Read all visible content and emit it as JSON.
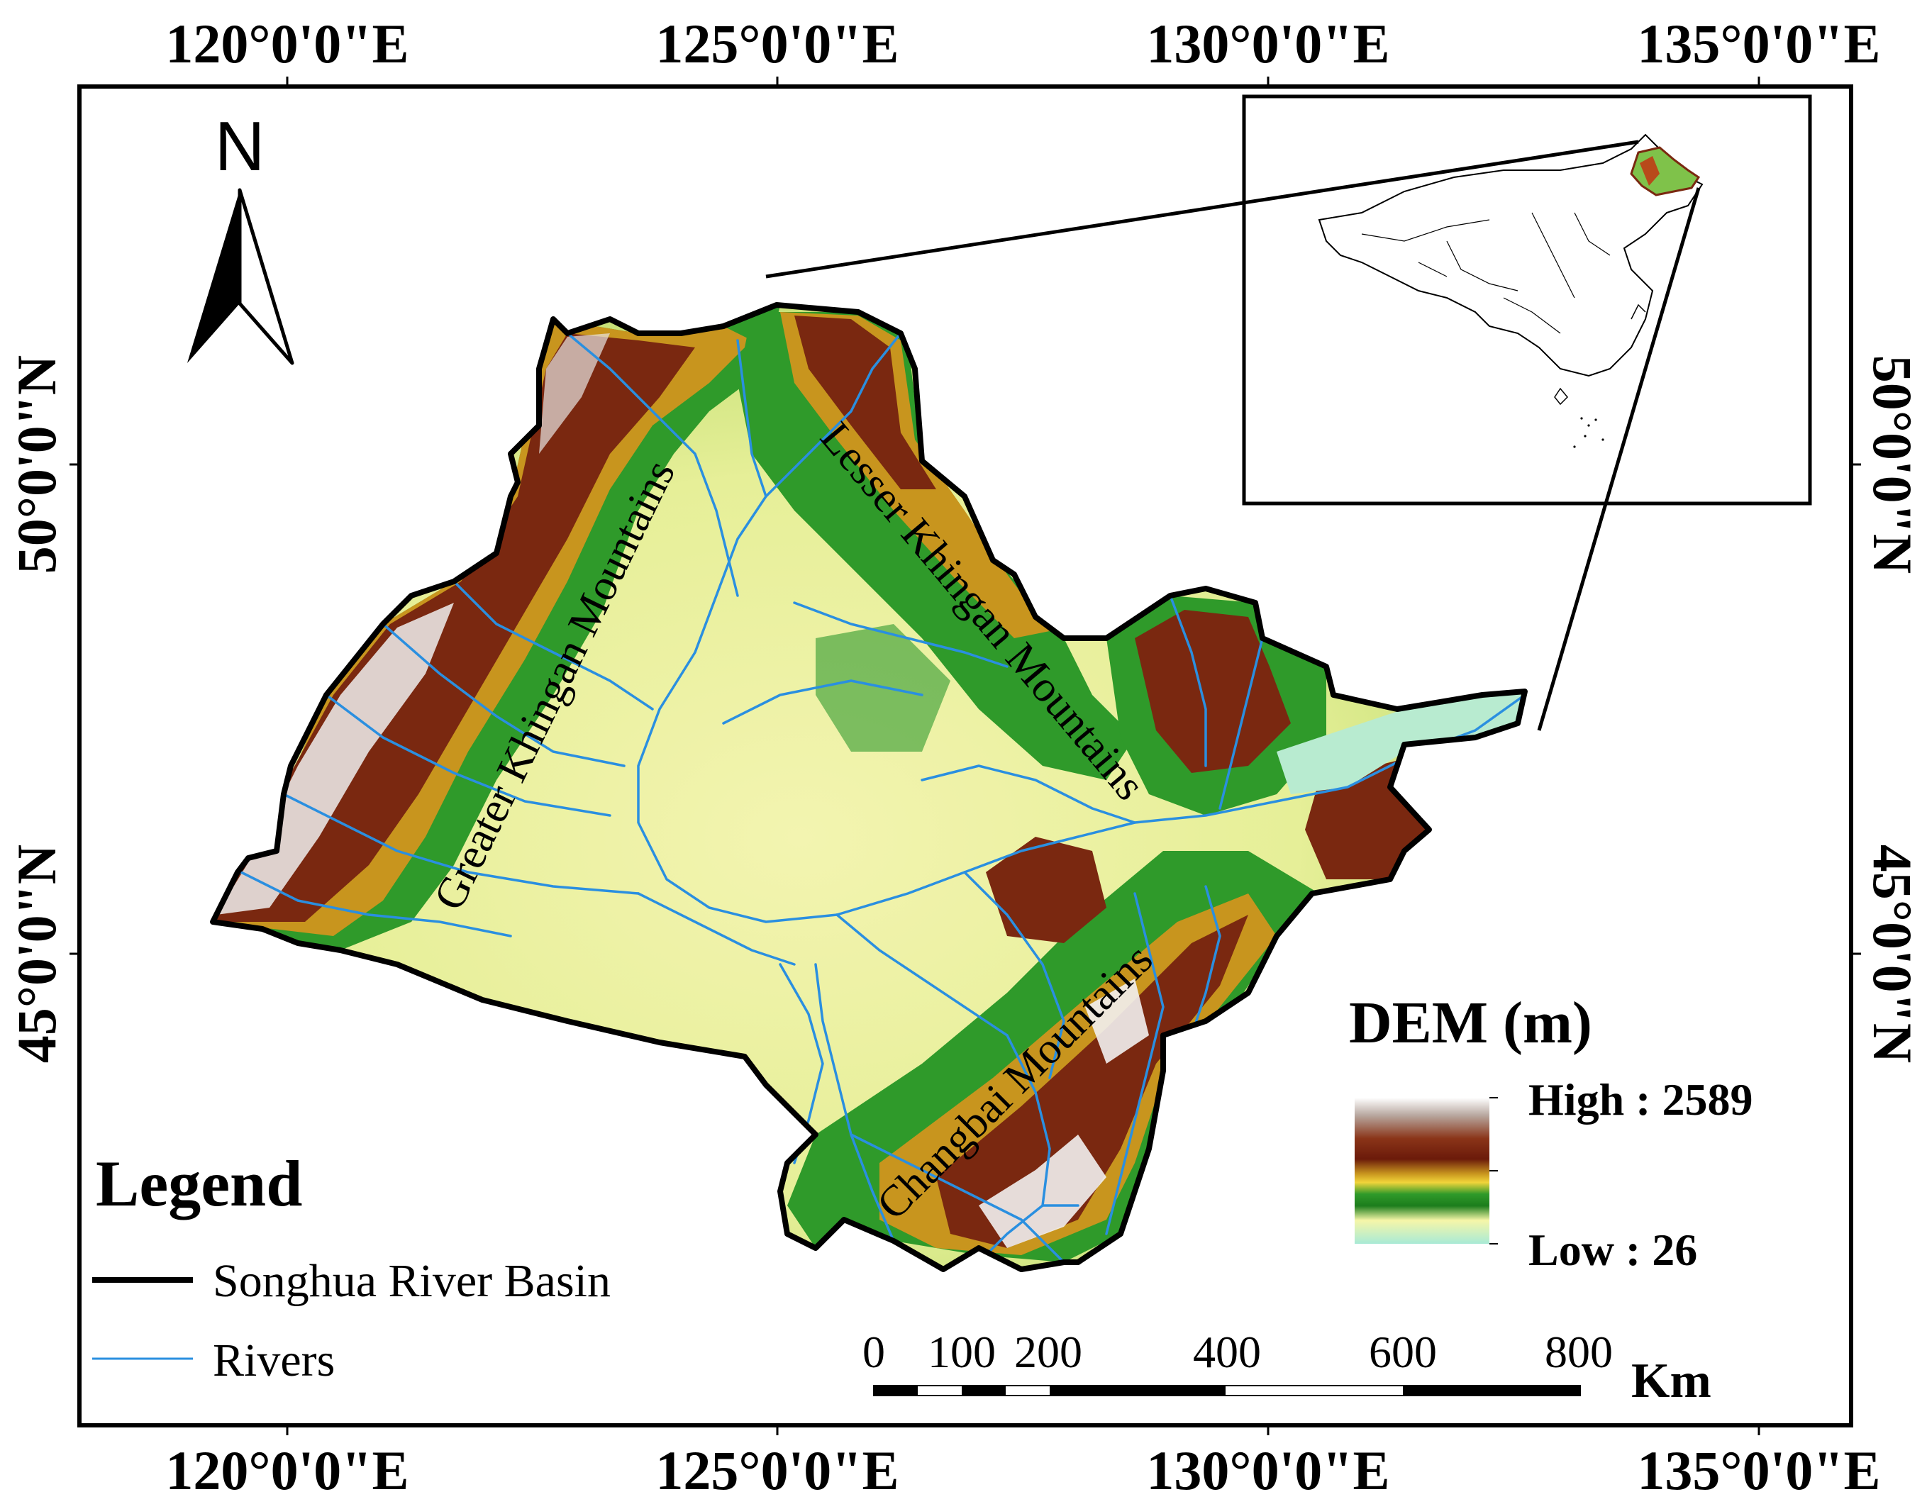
{
  "graticule": {
    "lon_labels": [
      "120°0'0\"E",
      "125°0'0\"E",
      "130°0'0\"E",
      "135°0'0\"E"
    ],
    "lat_labels": [
      "50°0'0\"N",
      "45°0'0\"N"
    ]
  },
  "north_arrow": {
    "label": "N",
    "icon": "north-arrow-icon"
  },
  "mountains": {
    "greater": "Greater Khingan Mountains",
    "lesser": "Lesser Khingan Mountains",
    "changbai": "Changbai Mountains"
  },
  "legend": {
    "title": "Legend",
    "items": [
      {
        "label": "Songhua River Basin",
        "color": "#000000"
      },
      {
        "label": "Rivers",
        "color": "#2a8fe0"
      }
    ]
  },
  "dem": {
    "title": "DEM (m)",
    "high": "High : 2589",
    "low": "Low : 26",
    "colors": [
      "#ffffff",
      "#6b1a0a",
      "#c8951e",
      "#2f9a2a",
      "#f6f6a8",
      "#a8ead6"
    ]
  },
  "scale": {
    "labels": [
      "0",
      "100",
      "200",
      "400",
      "600",
      "800"
    ],
    "unit": "Km"
  }
}
